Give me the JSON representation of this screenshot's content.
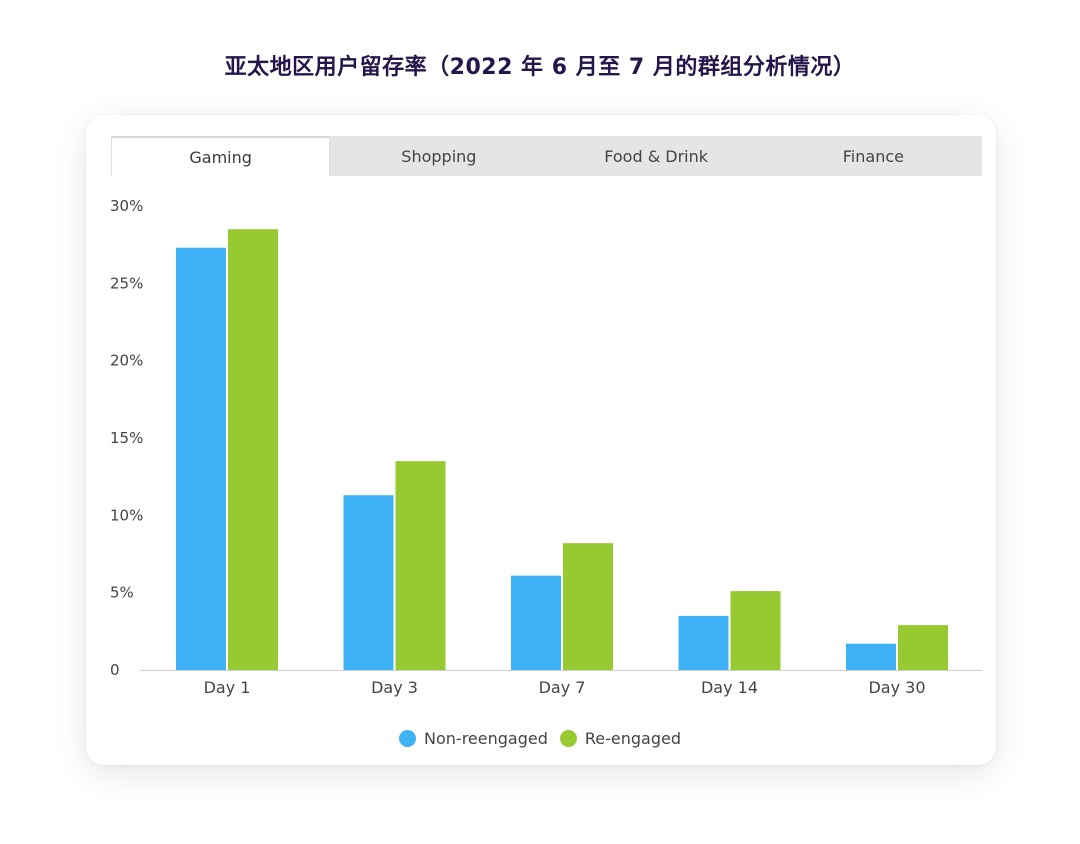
{
  "title": "亚太地区用户留存率（2022 年 6 月至 7 月的群组分析情况）",
  "tabs": [
    {
      "label": "Gaming",
      "active": true
    },
    {
      "label": "Shopping",
      "active": false
    },
    {
      "label": "Food & Drink",
      "active": false
    },
    {
      "label": "Finance",
      "active": false
    }
  ],
  "colors": {
    "non_reengaged": "#3fb1f5",
    "re_engaged": "#97c930",
    "axis": "#cfcfcf",
    "tick_text": "#444444"
  },
  "chart_data": {
    "type": "bar",
    "categories": [
      "Day 1",
      "Day 3",
      "Day 7",
      "Day 14",
      "Day 30"
    ],
    "series": [
      {
        "name": "Non-reengaged",
        "values": [
          27.3,
          11.3,
          6.1,
          3.5,
          1.7
        ]
      },
      {
        "name": "Re-engaged",
        "values": [
          28.5,
          13.5,
          8.2,
          5.1,
          2.9
        ]
      }
    ],
    "y_ticks": [
      "0",
      "5%",
      "10%",
      "15%",
      "20%",
      "25%",
      "30%"
    ],
    "ylim": [
      0,
      30
    ],
    "grid": false,
    "legend_position": "bottom-center"
  }
}
